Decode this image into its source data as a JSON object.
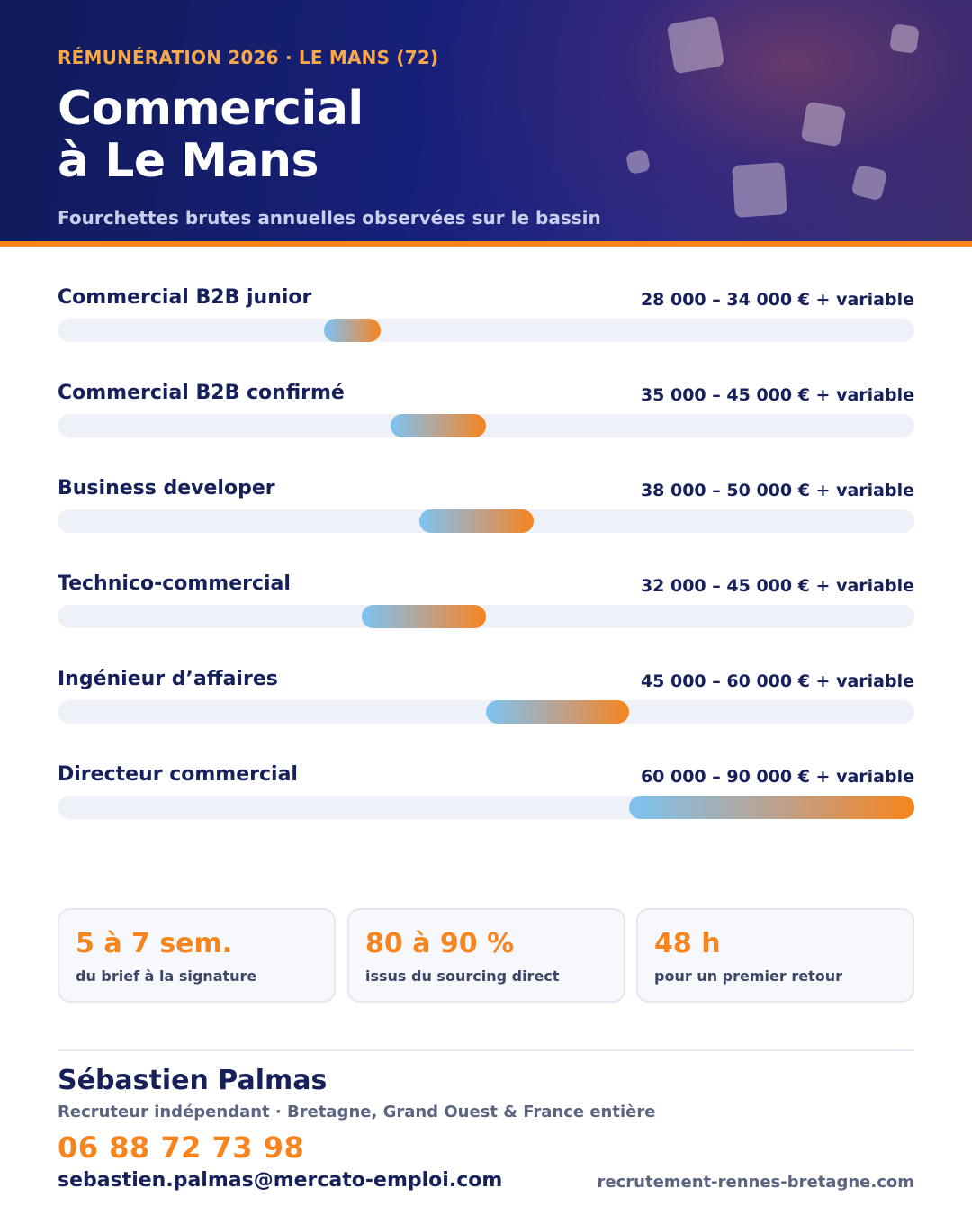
{
  "header": {
    "eyebrow": "RÉMUNÉRATION 2026 · LE MANS (72)",
    "title_line1": "Commercial",
    "title_line2": "à Le Mans",
    "subtitle": "Fourchettes brutes annuelles observées sur le bassin"
  },
  "colors": {
    "navy": "#16205a",
    "accent": "#f7841d",
    "bar_start": "#7cc3f2",
    "track": "#eef1f7"
  },
  "chart_data": {
    "type": "bar",
    "orientation": "horizontal-range",
    "xlim": [
      0,
      90000
    ],
    "unit": "€",
    "grid": false,
    "rows": [
      {
        "label": "Commercial B2B junior",
        "min": 28000,
        "max": 34000,
        "value_text": "28 000 – 34 000 € + variable"
      },
      {
        "label": "Commercial B2B confirmé",
        "min": 35000,
        "max": 45000,
        "value_text": "35 000 – 45 000 € + variable"
      },
      {
        "label": "Business developer",
        "min": 38000,
        "max": 50000,
        "value_text": "38 000 – 50 000 € + variable"
      },
      {
        "label": "Technico-commercial",
        "min": 32000,
        "max": 45000,
        "value_text": "32 000 – 45 000 € + variable"
      },
      {
        "label": "Ingénieur d’affaires",
        "min": 45000,
        "max": 60000,
        "value_text": "45 000 – 60 000 € + variable"
      },
      {
        "label": "Directeur commercial",
        "min": 60000,
        "max": 90000,
        "value_text": "60 000 – 90 000 € + variable"
      }
    ]
  },
  "stats": [
    {
      "value": "5 à 7 sem.",
      "label": "du brief à la signature"
    },
    {
      "value": "80 à 90 %",
      "label": "issus du sourcing direct"
    },
    {
      "value": "48 h",
      "label": "pour un premier retour"
    }
  ],
  "contact": {
    "name": "Sébastien Palmas",
    "role": "Recruteur indépendant · Bretagne, Grand Ouest & France entière",
    "phone": "06 88 72 73 98",
    "email": "sebastien.palmas@mercato-emploi.com",
    "website": "recrutement-rennes-bretagne.com"
  }
}
